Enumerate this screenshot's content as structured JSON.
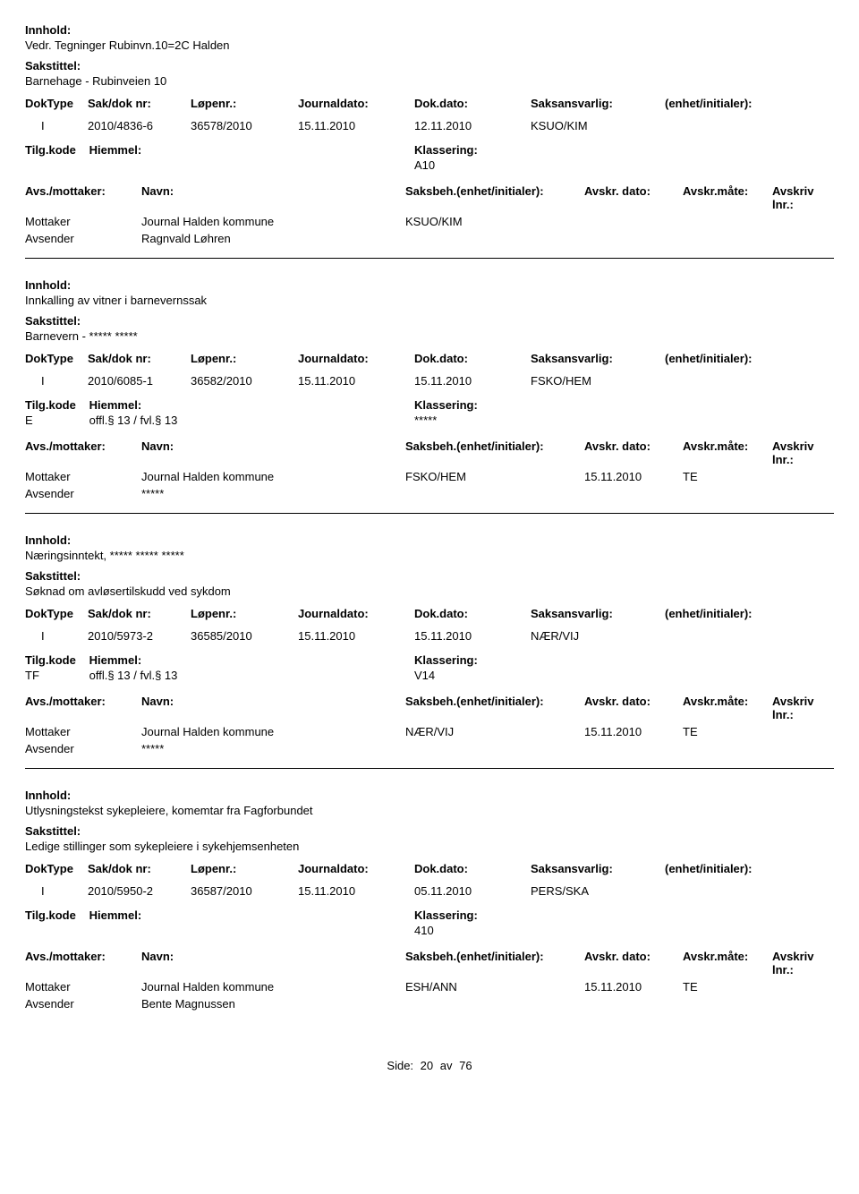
{
  "labels": {
    "innhold": "Innhold:",
    "sakstittel": "Sakstittel:",
    "doktype": "DokType",
    "sakdoknr": "Sak/dok nr:",
    "lopenr": "Løpenr.:",
    "journaldato": "Journaldato:",
    "dokdato": "Dok.dato:",
    "saksansvarlig": "Saksansvarlig:",
    "enhet": "(enhet/initialer):",
    "tilgkode": "Tilg.kode",
    "hjemmel": "Hiemmel:",
    "klassering": "Klassering:",
    "avsmottaker": "Avs./mottaker:",
    "navn": "Navn:",
    "saksbeh": "Saksbeh.(enhet/initialer):",
    "avskrdato": "Avskr. dato:",
    "avskrmate": "Avskr.måte:",
    "avskrivlnr": "Avskriv lnr.:",
    "side": "Side:",
    "av": "av"
  },
  "pager": {
    "page": "20",
    "total": "76"
  },
  "records": [
    {
      "innhold": "Vedr. Tegninger Rubinvn.10=2C Halden",
      "sakstittel": "Barnehage - Rubinveien 10",
      "doktype": "I",
      "sakdoknr": "2010/4836-6",
      "lopenr": "36578/2010",
      "journaldato": "15.11.2010",
      "dokdato": "12.11.2010",
      "saksansvarlig": "KSUO/KIM",
      "tilgkode": "",
      "hjemmel": "",
      "klassering": "A10",
      "show_avs_header": false,
      "parts": [
        {
          "role": "Mottaker",
          "name": "Journal Halden kommune",
          "saksbeh": "KSUO/KIM",
          "avskrdato": "",
          "avskrmate": ""
        },
        {
          "role": "Avsender",
          "name": "Ragnvald Løhren",
          "saksbeh": "",
          "avskrdato": "",
          "avskrmate": ""
        }
      ]
    },
    {
      "innhold": "Innkalling av vitner i barnevernssak",
      "sakstittel": "Barnevern - ***** *****",
      "doktype": "I",
      "sakdoknr": "2010/6085-1",
      "lopenr": "36582/2010",
      "journaldato": "15.11.2010",
      "dokdato": "15.11.2010",
      "saksansvarlig": "FSKO/HEM",
      "tilgkode": "E",
      "hjemmel": "offl.§ 13 / fvl.§ 13",
      "klassering": "*****",
      "show_avs_header": false,
      "parts": [
        {
          "role": "Mottaker",
          "name": "Journal Halden kommune",
          "saksbeh": "FSKO/HEM",
          "avskrdato": "15.11.2010",
          "avskrmate": "TE"
        },
        {
          "role": "Avsender",
          "name": "*****",
          "saksbeh": "",
          "avskrdato": "",
          "avskrmate": ""
        }
      ]
    },
    {
      "innhold": "Næringsinntekt, ***** ***** *****",
      "sakstittel": "Søknad om avløsertilskudd ved sykdom",
      "doktype": "I",
      "sakdoknr": "2010/5973-2",
      "lopenr": "36585/2010",
      "journaldato": "15.11.2010",
      "dokdato": "15.11.2010",
      "saksansvarlig": "NÆR/VIJ",
      "tilgkode": "TF",
      "hjemmel": "offl.§ 13 / fvl.§ 13",
      "klassering": "V14",
      "show_avs_header": true,
      "parts": [
        {
          "role": "Mottaker",
          "name": "Journal Halden kommune",
          "saksbeh": "NÆR/VIJ",
          "avskrdato": "15.11.2010",
          "avskrmate": "TE"
        },
        {
          "role": "Avsender",
          "name": "*****",
          "saksbeh": "",
          "avskrdato": "",
          "avskrmate": ""
        }
      ]
    },
    {
      "innhold": "Utlysningstekst sykepleiere, komemtar fra Fagforbundet",
      "sakstittel": "Ledige stillinger som sykepleiere i sykehjemsenheten",
      "doktype": "I",
      "sakdoknr": "2010/5950-2",
      "lopenr": "36587/2010",
      "journaldato": "15.11.2010",
      "dokdato": "05.11.2010",
      "saksansvarlig": "PERS/SKA",
      "tilgkode": "",
      "hjemmel": "",
      "klassering": "410",
      "show_avs_header": true,
      "parts": [
        {
          "role": "Mottaker",
          "name": "Journal Halden kommune",
          "saksbeh": "ESH/ANN",
          "avskrdato": "15.11.2010",
          "avskrmate": "TE"
        },
        {
          "role": "Avsender",
          "name": "Bente Magnussen",
          "saksbeh": "",
          "avskrdato": "",
          "avskrmate": ""
        }
      ]
    }
  ]
}
